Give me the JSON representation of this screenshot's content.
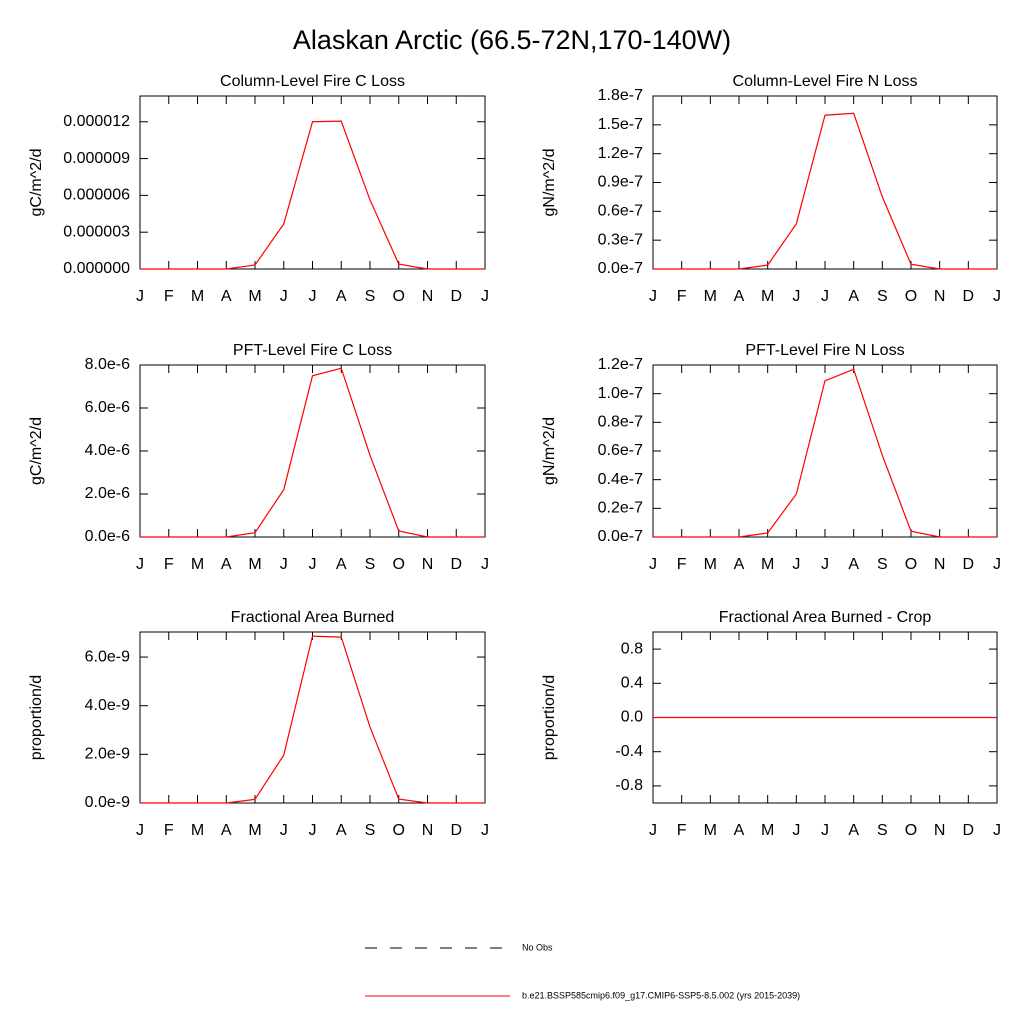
{
  "title": "Alaskan Arctic (66.5-72N,170-140W)",
  "legend": [
    {
      "name": "No Obs",
      "color": "#000000",
      "dash": true
    },
    {
      "name": "b.e21.BSSP585cmip6.f09_g17.CMIP6-SSP5-8.5.002 (yrs 2015-2039)",
      "color": "#ff0000",
      "dash": false
    }
  ],
  "chart_data": [
    {
      "type": "line",
      "title": "Column-Level Fire C Loss",
      "ylabel": "gC/m^2/d",
      "categories": [
        "J",
        "F",
        "M",
        "A",
        "M",
        "J",
        "J",
        "A",
        "S",
        "O",
        "N",
        "D",
        "J"
      ],
      "values": [
        0,
        0,
        0,
        0,
        3.3e-07,
        3.67e-06,
        1.2e-05,
        1.205e-05,
        5.63e-06,
        4e-07,
        0,
        0,
        0
      ],
      "color": "#ff0000",
      "ylim": [
        0,
        1.41e-05
      ],
      "yticks": [
        {
          "value": 0,
          "label": "0.000000"
        },
        3e-06,
        6e-06,
        9e-06,
        1.2e-05
      ]
    },
    {
      "type": "line",
      "title": "Column-Level Fire N Loss",
      "ylabel": "gN/m^2/d",
      "categories": [
        "J",
        "F",
        "M",
        "A",
        "M",
        "J",
        "J",
        "A",
        "S",
        "O",
        "N",
        "D",
        "J"
      ],
      "values": [
        0,
        0,
        0,
        0,
        4e-09,
        4.7e-08,
        1.6e-07,
        1.62e-07,
        7.5e-08,
        5e-09,
        0,
        0,
        0
      ],
      "color": "#ff0000",
      "ylim": [
        0,
        1.8e-07
      ],
      "yticks": [
        {
          "value": 0,
          "label": "0.0e-7"
        },
        {
          "value": 3e-08,
          "label": "0.3e-7"
        },
        {
          "value": 6e-08,
          "label": "0.6e-7"
        },
        {
          "value": 9e-08,
          "label": "0.9e-7"
        },
        {
          "value": 1.2e-07,
          "label": "1.2e-7"
        },
        {
          "value": 1.5e-07,
          "label": "1.5e-7"
        },
        {
          "value": 1.8e-07,
          "label": "1.8e-7"
        }
      ]
    },
    {
      "type": "line",
      "title": "PFT-Level Fire C Loss",
      "ylabel": "gC/m^2/d",
      "categories": [
        "J",
        "F",
        "M",
        "A",
        "M",
        "J",
        "J",
        "A",
        "S",
        "O",
        "N",
        "D",
        "J"
      ],
      "values": [
        0,
        0,
        0,
        0,
        2e-07,
        2.2e-06,
        7.5e-06,
        7.85e-06,
        3.8e-06,
        2.8e-07,
        0,
        0,
        0
      ],
      "color": "#ff0000",
      "ylim": [
        0,
        8e-06
      ],
      "yticks": [
        {
          "value": 0,
          "label": "0.0e-6"
        },
        {
          "value": 2e-06,
          "label": "2.0e-6"
        },
        {
          "value": 4e-06,
          "label": "4.0e-6"
        },
        {
          "value": 6e-06,
          "label": "6.0e-6"
        },
        {
          "value": 8e-06,
          "label": "8.0e-6"
        }
      ]
    },
    {
      "type": "line",
      "title": "PFT-Level Fire N Loss",
      "ylabel": "gN/m^2/d",
      "categories": [
        "J",
        "F",
        "M",
        "A",
        "M",
        "J",
        "J",
        "A",
        "S",
        "O",
        "N",
        "D",
        "J"
      ],
      "values": [
        0,
        0,
        0,
        0,
        2.8e-09,
        3e-08,
        1.09e-07,
        1.17e-07,
        5.7e-08,
        4e-09,
        0,
        0,
        0
      ],
      "color": "#ff0000",
      "ylim": [
        0,
        1.2e-07
      ],
      "yticks": [
        {
          "value": 0,
          "label": "0.0e-7"
        },
        {
          "value": 2e-08,
          "label": "0.2e-7"
        },
        {
          "value": 4e-08,
          "label": "0.4e-7"
        },
        {
          "value": 6e-08,
          "label": "0.6e-7"
        },
        {
          "value": 8e-08,
          "label": "0.8e-7"
        },
        {
          "value": 1e-07,
          "label": "1.0e-7"
        },
        {
          "value": 1.2e-07,
          "label": "1.2e-7"
        }
      ]
    },
    {
      "type": "line",
      "title": "Fractional Area Burned",
      "ylabel": "proportion/d",
      "categories": [
        "J",
        "F",
        "M",
        "A",
        "M",
        "J",
        "J",
        "A",
        "S",
        "O",
        "N",
        "D",
        "J"
      ],
      "values": [
        0,
        0,
        0,
        0,
        1.5e-10,
        1.97e-09,
        6.86e-09,
        6.82e-09,
        3.12e-09,
        1.6e-10,
        0,
        0,
        0
      ],
      "color": "#ff0000",
      "ylim": [
        0,
        7.03e-09
      ],
      "yticks": [
        {
          "value": 0,
          "label": "0.0e-9"
        },
        {
          "value": 2e-09,
          "label": "2.0e-9"
        },
        {
          "value": 4e-09,
          "label": "4.0e-9"
        },
        {
          "value": 6e-09,
          "label": "6.0e-9"
        }
      ]
    },
    {
      "type": "line",
      "title": "Fractional Area Burned - Crop",
      "ylabel": "proportion/d",
      "categories": [
        "J",
        "F",
        "M",
        "A",
        "M",
        "J",
        "J",
        "A",
        "S",
        "O",
        "N",
        "D",
        "J"
      ],
      "values": [
        0,
        0,
        0,
        0,
        0,
        0,
        0,
        0,
        0,
        0,
        0,
        0,
        0
      ],
      "color": "#ff0000",
      "ylim": [
        -1,
        1
      ],
      "yticks": [
        -0.8,
        -0.4,
        {
          "value": 0,
          "label": "0.0"
        },
        0.4,
        0.8
      ]
    }
  ]
}
